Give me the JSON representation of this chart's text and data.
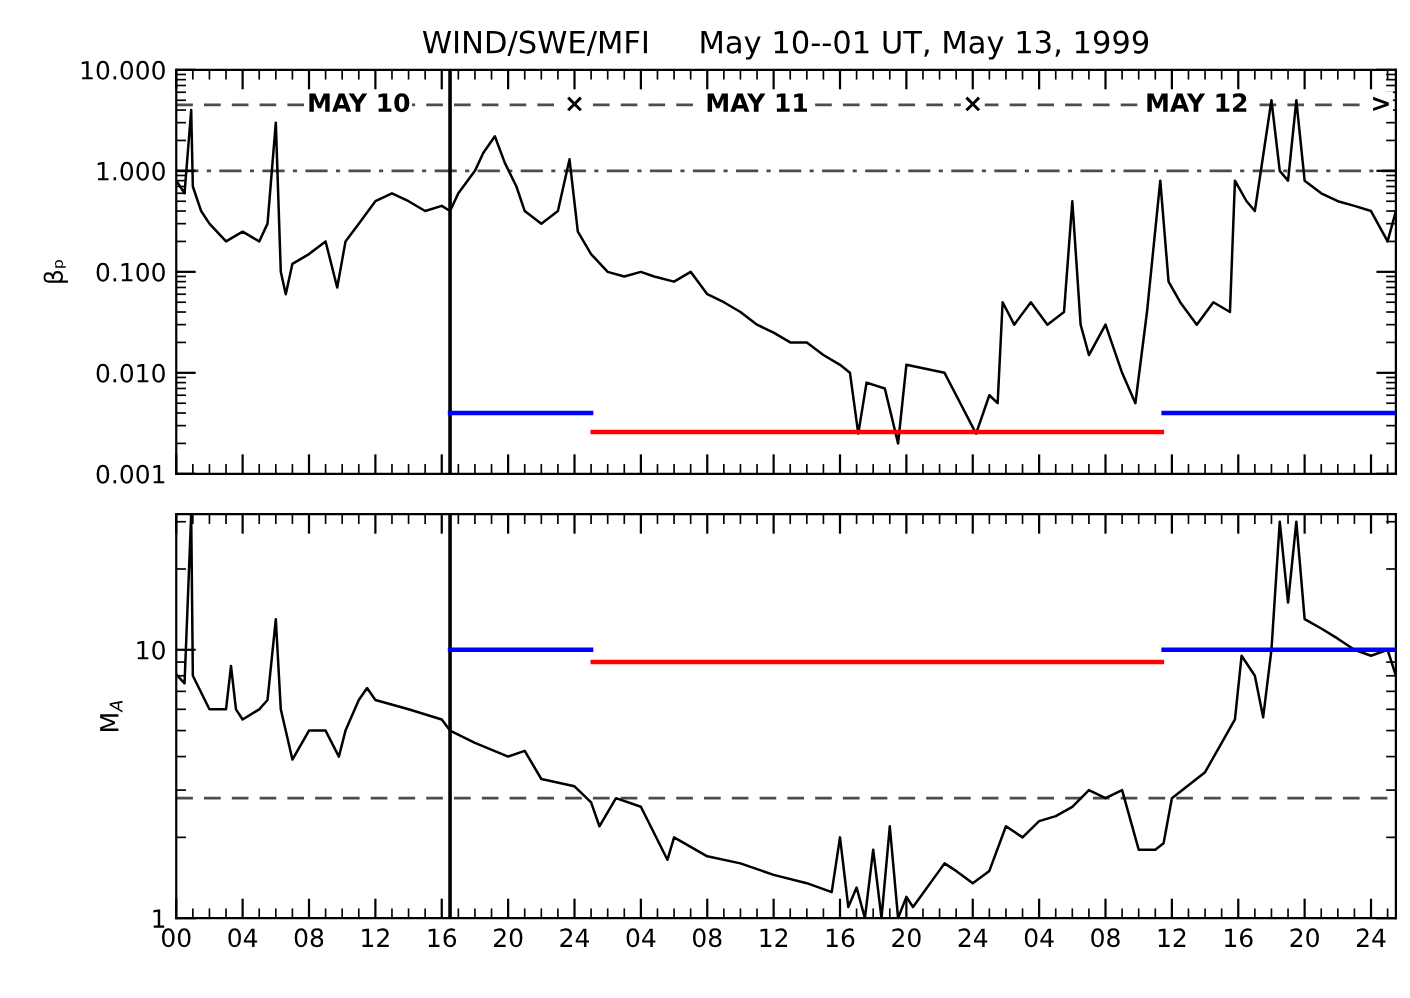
{
  "chart_data": [
    {
      "type": "line",
      "title": "WIND/SWE/MFI     May 10--01 UT, May 13, 1999",
      "ylabel": "βₚ",
      "log": "y",
      "grid": false,
      "marker": "none",
      "line_style": "solid",
      "tick_labels": "y",
      "xlim": [
        "1999-05-10T00:00",
        "1999-05-13T01:30"
      ],
      "xticks": [
        {
          "value": "1999-05-10T00:00",
          "label": null
        },
        {
          "value": "1999-05-10T04:00",
          "label": null
        },
        {
          "value": "1999-05-10T08:00",
          "label": null
        },
        {
          "value": "1999-05-10T12:00",
          "label": null
        },
        {
          "value": "1999-05-10T16:00",
          "label": null
        },
        {
          "value": "1999-05-10T20:00",
          "label": null
        },
        {
          "value": "1999-05-11T00:00",
          "label": null
        },
        {
          "value": "1999-05-11T04:00",
          "label": null
        },
        {
          "value": "1999-05-11T08:00",
          "label": null
        },
        {
          "value": "1999-05-11T12:00",
          "label": null
        },
        {
          "value": "1999-05-11T16:00",
          "label": null
        },
        {
          "value": "1999-05-11T20:00",
          "label": null
        },
        {
          "value": "1999-05-12T00:00",
          "label": null
        },
        {
          "value": "1999-05-12T04:00",
          "label": null
        },
        {
          "value": "1999-05-12T08:00",
          "label": null
        },
        {
          "value": "1999-05-12T12:00",
          "label": null
        },
        {
          "value": "1999-05-12T16:00",
          "label": null
        },
        {
          "value": "1999-05-12T20:00",
          "label": null
        },
        {
          "value": "1999-05-13T00:00",
          "label": null
        }
      ],
      "ylim": [
        0.001,
        10
      ],
      "yticks": [
        {
          "value": 0.001,
          "label": "0.001"
        },
        {
          "value": 0.01,
          "label": "0.010"
        },
        {
          "value": 0.1,
          "label": "0.100"
        },
        {
          "value": 1,
          "label": "1.000"
        },
        {
          "value": 10,
          "label": "10.000"
        }
      ],
      "ref_lines": [
        {
          "axis": "x",
          "value": "1999-05-10T16:30",
          "color": "#000000",
          "line_style": "solid"
        },
        {
          "axis": "y",
          "value": 1,
          "color": "#000000",
          "line_style": "dashdot"
        },
        {
          "axis": "y",
          "value": 4.5,
          "color": "#000000",
          "line_style": "dashed"
        }
      ],
      "annotations": [
        {
          "text": "MAY 10",
          "x": "1999-05-10T11:00",
          "y": 4.5
        },
        {
          "text": "×",
          "x": "1999-05-11T00:00",
          "y": 4.5
        },
        {
          "text": "MAY 11",
          "x": "1999-05-11T11:00",
          "y": 4.5
        },
        {
          "text": "×",
          "x": "1999-05-12T00:00",
          "y": 4.5
        },
        {
          "text": "MAY 12",
          "x": "1999-05-12T13:30",
          "y": 4.5
        },
        {
          "text": ">",
          "x": "1999-05-13T00:36",
          "y": 4.5
        }
      ],
      "series": [
        {
          "color": "#000000",
          "x": [
            "1999-05-10T00:00",
            "1999-05-10T00:30",
            "1999-05-10T00:54",
            "1999-05-10T01:00",
            "1999-05-10T01:30",
            "1999-05-10T02:00",
            "1999-05-10T03:00",
            "1999-05-10T04:00",
            "1999-05-10T05:00",
            "1999-05-10T05:30",
            "1999-05-10T06:00",
            "1999-05-10T06:18",
            "1999-05-10T06:36",
            "1999-05-10T07:00",
            "1999-05-10T08:00",
            "1999-05-10T09:00",
            "1999-05-10T09:42",
            "1999-05-10T10:12",
            "1999-05-10T11:00",
            "1999-05-10T12:00",
            "1999-05-10T13:00",
            "1999-05-10T14:00",
            "1999-05-10T15:00",
            "1999-05-10T16:00",
            "1999-05-10T16:30",
            "1999-05-10T17:00",
            "1999-05-10T18:00",
            "1999-05-10T18:30",
            "1999-05-10T19:12",
            "1999-05-10T19:48",
            "1999-05-10T20:30",
            "1999-05-10T21:00",
            "1999-05-10T22:00",
            "1999-05-10T23:00",
            "1999-05-10T23:42",
            "1999-05-11T00:12",
            "1999-05-11T01:00",
            "1999-05-11T02:00",
            "1999-05-11T03:00",
            "1999-05-11T04:00",
            "1999-05-11T04:48",
            "1999-05-11T06:00",
            "1999-05-11T07:00",
            "1999-05-11T08:00",
            "1999-05-11T09:00",
            "1999-05-11T10:00",
            "1999-05-11T11:00",
            "1999-05-11T12:00",
            "1999-05-11T13:00",
            "1999-05-11T14:00",
            "1999-05-11T15:00",
            "1999-05-11T16:00",
            "1999-05-11T16:36",
            "1999-05-11T17:06",
            "1999-05-11T17:36",
            "1999-05-11T18:42",
            "1999-05-11T19:30",
            "1999-05-11T20:00",
            "1999-05-11T22:18",
            "1999-05-11T23:00",
            "1999-05-12T00:12",
            "1999-05-12T01:00",
            "1999-05-12T01:30",
            "1999-05-12T01:48",
            "1999-05-12T02:30",
            "1999-05-12T03:30",
            "1999-05-12T04:30",
            "1999-05-12T05:30",
            "1999-05-12T06:00",
            "1999-05-12T06:30",
            "1999-05-12T07:00",
            "1999-05-12T08:00",
            "1999-05-12T09:00",
            "1999-05-12T09:48",
            "1999-05-12T10:30",
            "1999-05-12T11:18",
            "1999-05-12T11:48",
            "1999-05-12T12:30",
            "1999-05-12T13:30",
            "1999-05-12T14:30",
            "1999-05-12T15:30",
            "1999-05-12T15:48",
            "1999-05-12T16:30",
            "1999-05-12T17:00",
            "1999-05-12T18:00",
            "1999-05-12T18:30",
            "1999-05-12T19:00",
            "1999-05-12T19:30",
            "1999-05-12T20:00",
            "1999-05-12T21:00",
            "1999-05-12T22:00",
            "1999-05-12T23:00",
            "1999-05-13T00:00",
            "1999-05-13T01:00",
            "1999-05-13T01:30"
          ],
          "values": [
            0.8,
            0.6,
            4,
            0.7,
            0.4,
            0.3,
            0.2,
            0.25,
            0.2,
            0.3,
            3,
            0.1,
            0.06,
            0.12,
            0.15,
            0.2,
            0.07,
            0.2,
            0.3,
            0.5,
            0.6,
            0.5,
            0.4,
            0.45,
            0.4,
            0.6,
            1.0,
            1.5,
            2.2,
            1.2,
            0.7,
            0.4,
            0.3,
            0.4,
            1.3,
            0.25,
            0.15,
            0.1,
            0.09,
            0.1,
            0.09,
            0.08,
            0.1,
            0.06,
            0.05,
            0.04,
            0.03,
            0.025,
            0.02,
            0.02,
            0.015,
            0.012,
            0.01,
            0.0025,
            0.008,
            0.007,
            0.002,
            0.012,
            0.01,
            0.006,
            0.0025,
            0.006,
            0.005,
            0.05,
            0.03,
            0.05,
            0.03,
            0.04,
            0.5,
            0.03,
            0.015,
            0.03,
            0.01,
            0.005,
            0.04,
            0.8,
            0.08,
            0.05,
            0.03,
            0.05,
            0.04,
            0.8,
            0.5,
            0.4,
            5,
            1,
            0.8,
            5,
            0.8,
            0.6,
            0.5,
            0.45,
            0.4,
            0.2,
            0.4
          ]
        },
        {
          "color": "#0000ff",
          "x": [
            "1999-05-10T16:30",
            "1999-05-11T01:00"
          ],
          "values": [
            0.004,
            0.004
          ]
        },
        {
          "color": "#ff0000",
          "x": [
            "1999-05-11T01:06",
            "1999-05-12T11:24"
          ],
          "values": [
            0.0026,
            0.0026
          ]
        },
        {
          "color": "#0000ff",
          "x": [
            "1999-05-12T11:30",
            "1999-05-13T01:30"
          ],
          "values": [
            0.004,
            0.004
          ]
        }
      ]
    },
    {
      "type": "line",
      "ylabel": "M$_{A}$",
      "log": "y",
      "grid": false,
      "marker": "none",
      "line_style": "solid",
      "xlim": [
        "1999-05-10T00:00",
        "1999-05-13T01:30"
      ],
      "xticks": [
        {
          "value": "1999-05-10T00:00",
          "label": "00"
        },
        {
          "value": "1999-05-10T04:00",
          "label": "04"
        },
        {
          "value": "1999-05-10T08:00",
          "label": "08"
        },
        {
          "value": "1999-05-10T12:00",
          "label": "12"
        },
        {
          "value": "1999-05-10T16:00",
          "label": "16"
        },
        {
          "value": "1999-05-10T20:00",
          "label": "20"
        },
        {
          "value": "1999-05-11T00:00",
          "label": "24"
        },
        {
          "value": "1999-05-11T04:00",
          "label": "04"
        },
        {
          "value": "1999-05-11T08:00",
          "label": "08"
        },
        {
          "value": "1999-05-11T12:00",
          "label": "12"
        },
        {
          "value": "1999-05-11T16:00",
          "label": "16"
        },
        {
          "value": "1999-05-11T20:00",
          "label": "20"
        },
        {
          "value": "1999-05-12T00:00",
          "label": "24"
        },
        {
          "value": "1999-05-12T04:00",
          "label": "04"
        },
        {
          "value": "1999-05-12T08:00",
          "label": "08"
        },
        {
          "value": "1999-05-12T12:00",
          "label": "12"
        },
        {
          "value": "1999-05-12T16:00",
          "label": "16"
        },
        {
          "value": "1999-05-12T20:00",
          "label": "20"
        },
        {
          "value": "1999-05-13T00:00",
          "label": "24"
        }
      ],
      "ylim": [
        1,
        32
      ],
      "yticks": [
        1,
        10
      ],
      "ref_lines": [
        {
          "axis": "x",
          "value": "1999-05-10T16:30",
          "color": "#000000",
          "line_style": "solid"
        },
        {
          "axis": "y",
          "value": 2.8,
          "color": "#000000",
          "line_style": "dashed"
        }
      ],
      "series": [
        {
          "color": "#000000",
          "x": [
            "1999-05-10T00:00",
            "1999-05-10T00:30",
            "1999-05-10T00:54",
            "1999-05-10T01:00",
            "1999-05-10T02:00",
            "1999-05-10T03:00",
            "1999-05-10T03:18",
            "1999-05-10T03:36",
            "1999-05-10T04:00",
            "1999-05-10T05:00",
            "1999-05-10T05:30",
            "1999-05-10T06:00",
            "1999-05-10T06:18",
            "1999-05-10T07:00",
            "1999-05-10T08:00",
            "1999-05-10T09:00",
            "1999-05-10T09:48",
            "1999-05-10T10:12",
            "1999-05-10T11:00",
            "1999-05-10T11:30",
            "1999-05-10T12:00",
            "1999-05-10T14:00",
            "1999-05-10T16:00",
            "1999-05-10T16:30",
            "1999-05-10T18:00",
            "1999-05-10T20:00",
            "1999-05-10T21:00",
            "1999-05-10T22:00",
            "1999-05-11T00:00",
            "1999-05-11T01:00",
            "1999-05-11T01:30",
            "1999-05-11T02:30",
            "1999-05-11T04:00",
            "1999-05-11T05:36",
            "1999-05-11T06:00",
            "1999-05-11T08:00",
            "1999-05-11T10:00",
            "1999-05-11T12:00",
            "1999-05-11T14:00",
            "1999-05-11T15:30",
            "1999-05-11T16:00",
            "1999-05-11T16:30",
            "1999-05-11T17:00",
            "1999-05-11T17:30",
            "1999-05-11T18:00",
            "1999-05-11T18:30",
            "1999-05-11T19:00",
            "1999-05-11T19:30",
            "1999-05-11T20:00",
            "1999-05-11T20:24",
            "1999-05-11T22:18",
            "1999-05-11T23:00",
            "1999-05-12T00:00",
            "1999-05-12T01:00",
            "1999-05-12T02:00",
            "1999-05-12T03:00",
            "1999-05-12T04:00",
            "1999-05-12T05:00",
            "1999-05-12T06:00",
            "1999-05-12T07:00",
            "1999-05-12T08:00",
            "1999-05-12T09:00",
            "1999-05-12T10:00",
            "1999-05-12T11:00",
            "1999-05-12T11:30",
            "1999-05-12T12:00",
            "1999-05-12T14:00",
            "1999-05-12T15:00",
            "1999-05-12T15:48",
            "1999-05-12T16:12",
            "1999-05-12T17:00",
            "1999-05-12T17:30",
            "1999-05-12T18:00",
            "1999-05-12T18:30",
            "1999-05-12T19:00",
            "1999-05-12T19:30",
            "1999-05-12T20:00",
            "1999-05-12T21:00",
            "1999-05-12T22:00",
            "1999-05-12T23:00",
            "1999-05-13T00:00",
            "1999-05-13T01:00",
            "1999-05-13T01:30"
          ],
          "values": [
            8.1,
            7.5,
            32,
            8,
            6,
            6,
            8.7,
            6,
            5.5,
            6,
            6.5,
            13,
            6,
            3.9,
            5,
            5,
            4,
            5,
            6.5,
            7.2,
            6.5,
            6,
            5.5,
            5,
            4.5,
            4,
            4.2,
            3.3,
            3.1,
            2.7,
            2.2,
            2.8,
            2.6,
            1.65,
            2.0,
            1.7,
            1.6,
            1.45,
            1.35,
            1.25,
            2.0,
            1.1,
            1.3,
            1.0,
            1.8,
            1.0,
            2.2,
            1.0,
            1.2,
            1.1,
            1.6,
            1.5,
            1.35,
            1.5,
            2.2,
            2.0,
            2.3,
            2.4,
            2.6,
            3.0,
            2.8,
            3.0,
            1.8,
            1.8,
            1.9,
            2.8,
            3.5,
            4.5,
            5.5,
            9.5,
            8,
            5.6,
            10,
            30,
            15,
            30,
            13,
            12,
            11,
            10,
            9.5,
            10,
            8
          ]
        },
        {
          "color": "#0000ff",
          "x": [
            "1999-05-10T16:30",
            "1999-05-11T01:00"
          ],
          "values": [
            10,
            10
          ]
        },
        {
          "color": "#ff0000",
          "x": [
            "1999-05-11T01:06",
            "1999-05-12T11:24"
          ],
          "values": [
            9,
            9
          ]
        },
        {
          "color": "#0000ff",
          "x": [
            "1999-05-12T11:30",
            "1999-05-13T01:30"
          ],
          "values": [
            10,
            10
          ]
        }
      ]
    }
  ]
}
